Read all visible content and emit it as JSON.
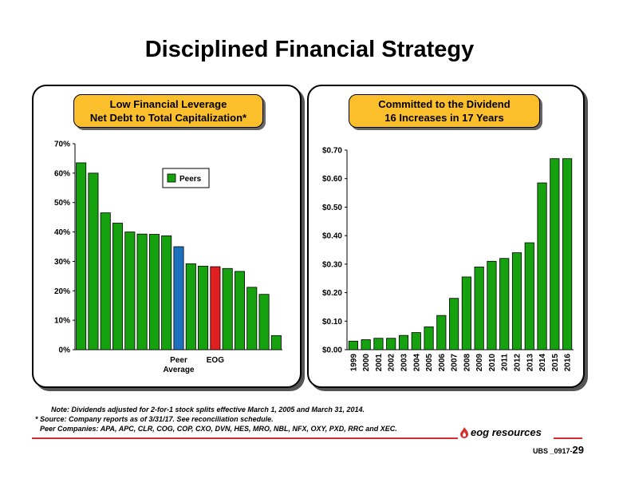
{
  "title": "Disciplined Financial Strategy",
  "left_badge": {
    "line1": "Low Financial Leverage",
    "line2": "Net Debt to Total Capitalization*"
  },
  "right_badge": {
    "line1": "Committed to the Dividend",
    "line2": "16 Increases in 17 Years"
  },
  "notes": {
    "line1": "Note: Dividends adjusted for 2-for-1 stock splits effective March 1, 2005 and March 31, 2014.",
    "line2": "* Source: Company reports as of 3/31/17. See reconciliation schedule.",
    "line3": "Peer Companies: APA, APC, CLR, COG, COP, CXO, DVN, HES, MRO, NBL, NFX, OXY, PXD, RRC and XEC."
  },
  "logo_text": "eog resources",
  "footer": {
    "code": "UBS _0917-",
    "page": "29"
  },
  "colors": {
    "green": "#16a10e",
    "blue": "#1f6fbf",
    "red": "#e02020",
    "badge": "#fbbf2c",
    "rule": "#d32f2f"
  },
  "chart_data": [
    {
      "type": "bar",
      "title": "",
      "ylim": [
        0,
        70
      ],
      "yticks": [
        "0%",
        "10%",
        "20%",
        "30%",
        "40%",
        "50%",
        "60%",
        "70%"
      ],
      "values": [
        63.5,
        60,
        46.5,
        43,
        40,
        39.3,
        39.2,
        38.7,
        35,
        29.2,
        28.4,
        28.2,
        27.6,
        26.6,
        21.2,
        18.8,
        4.8
      ],
      "bar_types": [
        "peer",
        "peer",
        "peer",
        "peer",
        "peer",
        "peer",
        "peer",
        "peer",
        "average",
        "peer",
        "peer",
        "eog",
        "peer",
        "peer",
        "peer",
        "peer",
        "peer"
      ],
      "labels": {
        "average": "Peer Average",
        "eog": "EOG"
      },
      "legend": {
        "label": "Peers",
        "position": "top-right"
      }
    },
    {
      "type": "bar",
      "title": "",
      "ylim": [
        0,
        0.7
      ],
      "yticks": [
        "$0.00",
        "$0.10",
        "$0.20",
        "$0.30",
        "$0.40",
        "$0.50",
        "$0.60",
        "$0.70"
      ],
      "categories": [
        "1999",
        "2000",
        "2001",
        "2002",
        "2003",
        "2004",
        "2005",
        "2006",
        "2007",
        "2008",
        "2009",
        "2010",
        "2011",
        "2012",
        "2013",
        "2014",
        "2015",
        "2016"
      ],
      "values": [
        0.03,
        0.035,
        0.04,
        0.04,
        0.05,
        0.06,
        0.08,
        0.12,
        0.18,
        0.255,
        0.29,
        0.31,
        0.32,
        0.34,
        0.375,
        0.585,
        0.67,
        0.67
      ]
    }
  ]
}
